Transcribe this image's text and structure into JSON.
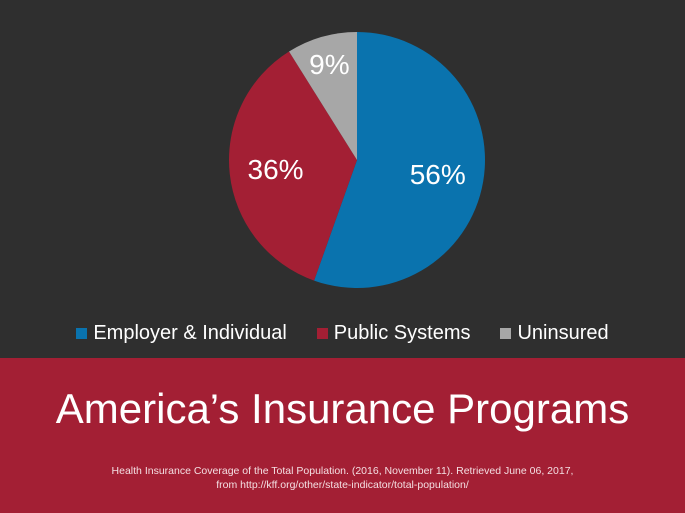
{
  "chart_data": {
    "type": "pie",
    "slices": [
      {
        "label": "Employer & Individual",
        "value": 56,
        "display": "56%",
        "color": "#0a73ae"
      },
      {
        "label": "Public Systems",
        "value": 36,
        "display": "36%",
        "color": "#a31f34"
      },
      {
        "label": "Uninsured",
        "value": 9,
        "display": "9%",
        "color": "#a7a7a7"
      }
    ],
    "legend_position": "bottom"
  },
  "banner": {
    "title": "America’s Insurance Programs",
    "citation_line1": "Health Insurance Coverage of the Total Population. (2016, November 11). Retrieved June 06, 2017,",
    "citation_line2": "from http://kff.org/other/state-indicator/total-population/"
  },
  "colors": {
    "background": "#2f2f2f",
    "banner": "#a31f34"
  }
}
